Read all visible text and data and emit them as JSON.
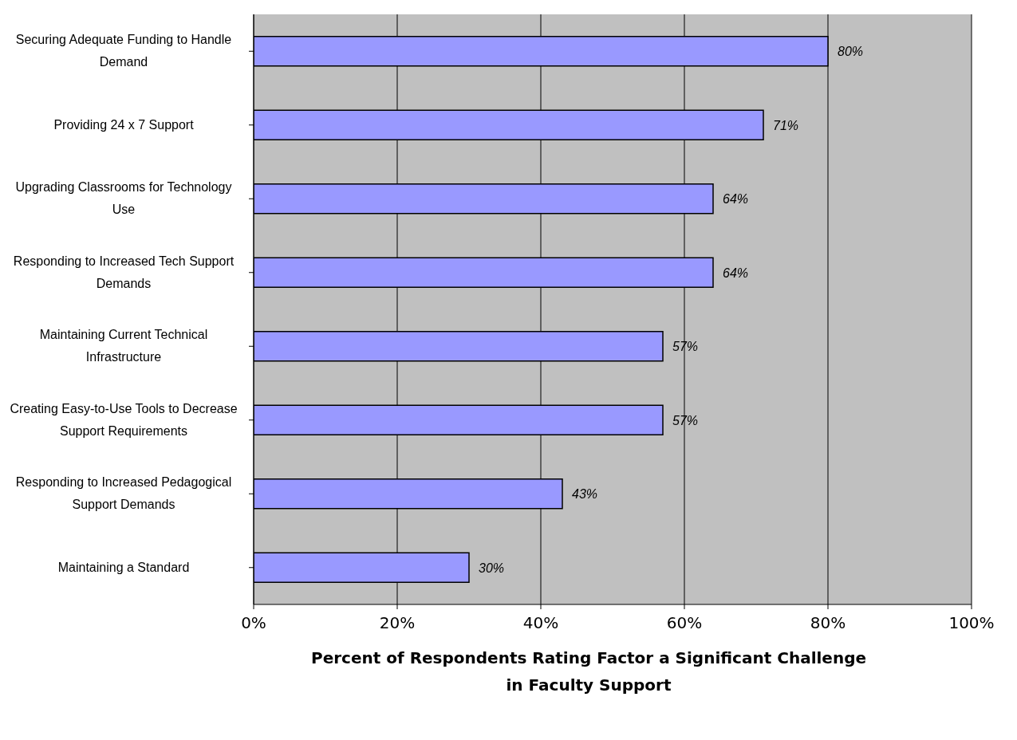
{
  "chart_data": {
    "type": "bar",
    "orientation": "horizontal",
    "xlabel": "Percent of Respondents Rating Factor a Significant Challenge in Faculty Support",
    "categories": [
      "Securing Adequate Funding to Handle Demand",
      "Providing 24 x 7 Support",
      "Upgrading Classrooms for Technology Use",
      "Responding to Increased Tech Support Demands",
      "Maintaining Current Technical Infrastructure",
      "Creating Easy-to-Use Tools to Decrease Support Requirements",
      "Responding to Increased Pedagogical Support Demands",
      "Maintaining a Standard"
    ],
    "values": [
      80,
      71,
      64,
      64,
      57,
      57,
      43,
      30
    ],
    "value_labels": [
      "80%",
      "71%",
      "64%",
      "64%",
      "57%",
      "57%",
      "43%",
      "30%"
    ],
    "color": "#9999ff",
    "xlim": [
      0,
      100
    ],
    "xticks": [
      {
        "value": 0,
        "label": "0%"
      },
      {
        "value": 20,
        "label": "20%"
      },
      {
        "value": 40,
        "label": "40%"
      },
      {
        "value": 60,
        "label": "60%"
      },
      {
        "value": 80,
        "label": "80%"
      },
      {
        "value": 100,
        "label": "100%"
      }
    ],
    "grid": "x"
  }
}
